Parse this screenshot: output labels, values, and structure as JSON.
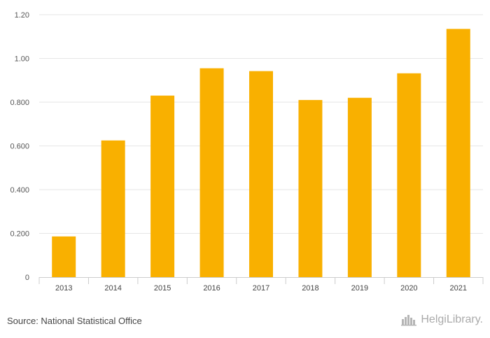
{
  "chart_data": {
    "type": "bar",
    "categories": [
      "2013",
      "2014",
      "2015",
      "2016",
      "2017",
      "2018",
      "2019",
      "2020",
      "2021"
    ],
    "values": [
      0.186,
      0.625,
      0.83,
      0.955,
      0.942,
      0.81,
      0.82,
      0.932,
      1.135
    ],
    "title": "",
    "xlabel": "",
    "ylabel": "",
    "ylim": [
      0,
      1.2
    ],
    "yticks": [
      0,
      0.2,
      0.4,
      0.6,
      0.8,
      1.0,
      1.2
    ],
    "ytick_labels": [
      "0",
      "0.200",
      "0.400",
      "0.600",
      "0.800",
      "1.00",
      "1.20"
    ],
    "grid": true,
    "bar_color": "#f9b000"
  },
  "footer": {
    "source": "Source: National Statistical Office",
    "brand": "HelgiLibrary."
  }
}
